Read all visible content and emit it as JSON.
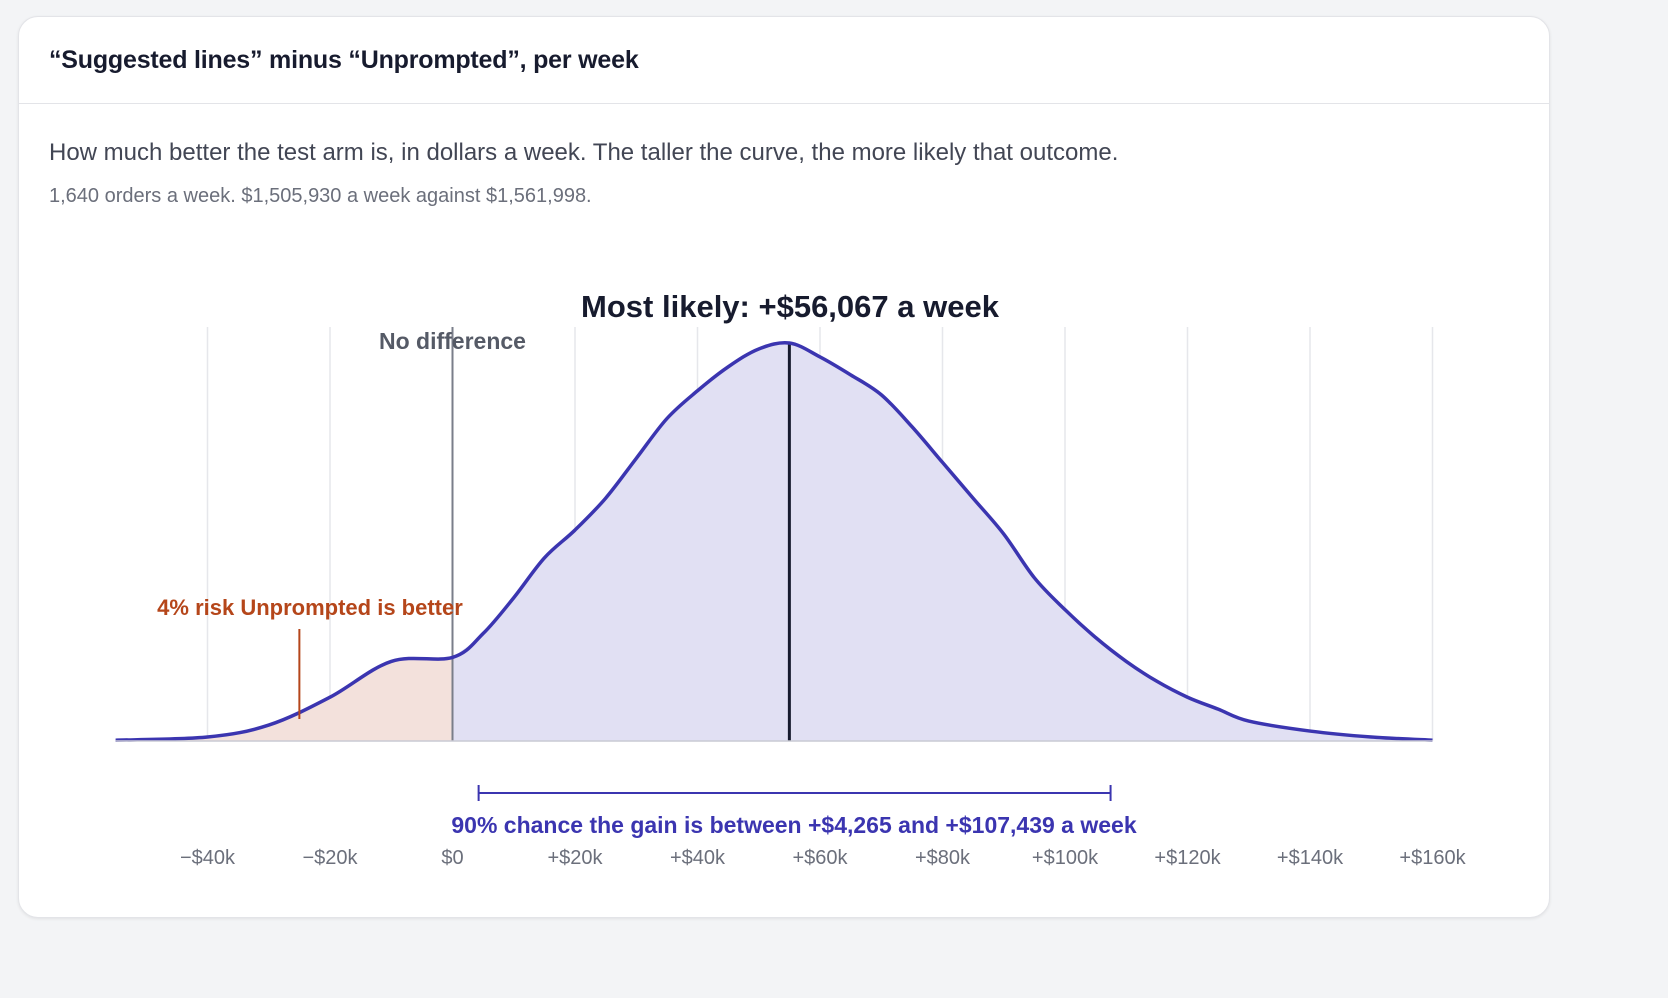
{
  "header": {
    "title": "“Suggested lines” minus “Unprompted”, per week"
  },
  "description": "How much better the test arm is, in dollars a week. The taller the curve, the more likely that outcome.",
  "subdescription": "1,640 orders a week. $1,505,930 a week against $1,561,998.",
  "colors": {
    "curve": "#3b35b0",
    "fill_gain": "#e1e0f3",
    "fill_risk": "#f3e1dc",
    "risk_text": "#b5461a",
    "interval_text": "#3b35b0",
    "zero_line": "#7a7e8a",
    "mode_line": "#171b2e",
    "grid": "#e6e7eb"
  },
  "chart_data": {
    "type": "area",
    "title": "Most likely: +$56,067 a week",
    "x_unit": "USD per week",
    "xlim": [
      -55000,
      163000
    ],
    "x_ticks": [
      -40000,
      -20000,
      0,
      20000,
      40000,
      60000,
      80000,
      100000,
      120000,
      140000,
      160000
    ],
    "x_tick_labels": [
      "−$40k",
      "−$20k",
      "$0",
      "+$20k",
      "+$40k",
      "+$60k",
      "+$80k",
      "+$100k",
      "+$120k",
      "+$140k",
      "+$160k"
    ],
    "grid": true,
    "mode": 55000,
    "zero_label": "No difference",
    "risk_annotation": "4% risk Unprompted is better",
    "risk_marker_x": -25000,
    "interval": {
      "low": 4265,
      "high": 107439,
      "label": "90% chance the gain is between +$4,265 and +$107,439 a week"
    },
    "density": {
      "x": [
        -55000,
        -40000,
        -30000,
        -20000,
        -10000,
        0,
        5000,
        10000,
        15000,
        20000,
        25000,
        30000,
        35000,
        40000,
        45000,
        50000,
        55000,
        60000,
        65000,
        70000,
        75000,
        80000,
        85000,
        90000,
        95000,
        100000,
        105000,
        110000,
        115000,
        120000,
        125000,
        130000,
        140000,
        150000,
        160000
      ],
      "y": [
        0.002,
        0.01,
        0.04,
        0.11,
        0.2,
        0.21,
        0.27,
        0.36,
        0.46,
        0.53,
        0.61,
        0.71,
        0.81,
        0.88,
        0.94,
        0.985,
        1.0,
        0.965,
        0.92,
        0.87,
        0.79,
        0.7,
        0.61,
        0.52,
        0.41,
        0.33,
        0.26,
        0.2,
        0.15,
        0.11,
        0.08,
        0.05,
        0.025,
        0.01,
        0.002
      ]
    }
  }
}
